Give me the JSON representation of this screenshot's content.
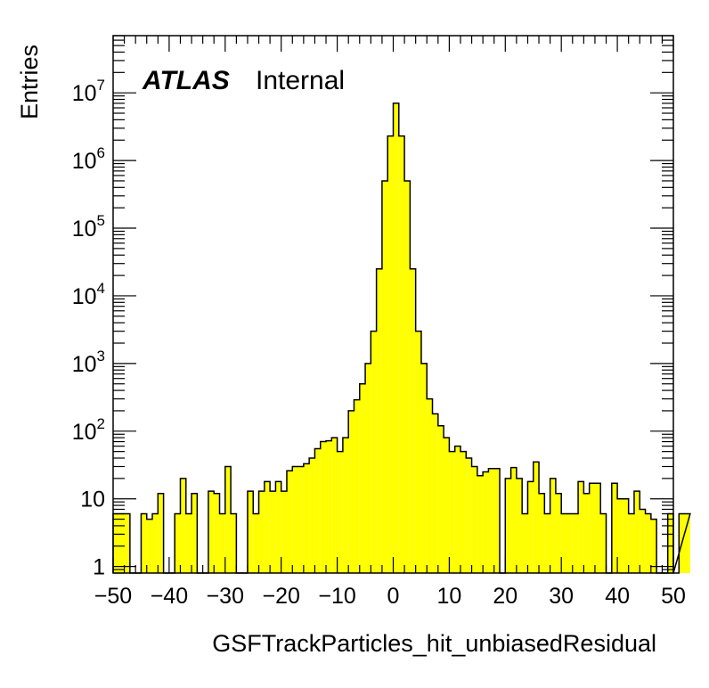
{
  "chart_data": {
    "type": "bar",
    "style": "histogram",
    "xlabel": "GSFTrackParticles_hit_unbiasedResidual",
    "ylabel": "Entries",
    "annotation": {
      "experiment": "ATLAS",
      "status": "Internal"
    },
    "x_range": [
      -50,
      50
    ],
    "y_range": [
      0.8,
      70000000
    ],
    "y_scale": "log",
    "fill_color": "#ffff00",
    "edge_color": "#000000",
    "x_ticks": [
      -50,
      -40,
      -30,
      -20,
      -10,
      0,
      10,
      20,
      30,
      40,
      50
    ],
    "x_tick_labels": [
      "−50",
      "−40",
      "−30",
      "−20",
      "−10",
      "0",
      "10",
      "20",
      "30",
      "40",
      "50"
    ],
    "y_ticks": [
      1,
      10,
      100,
      1000,
      10000,
      100000,
      1000000,
      10000000
    ],
    "y_tick_labels": [
      {
        "base": "1",
        "exp": ""
      },
      {
        "base": "10",
        "exp": ""
      },
      {
        "base": "10",
        "exp": "2"
      },
      {
        "base": "10",
        "exp": "3"
      },
      {
        "base": "10",
        "exp": "4"
      },
      {
        "base": "10",
        "exp": "5"
      },
      {
        "base": "10",
        "exp": "6"
      },
      {
        "base": "10",
        "exp": "7"
      }
    ],
    "bin_width": 1,
    "bin_edges_start": -50,
    "values": [
      6,
      6,
      6,
      0,
      0,
      6,
      5,
      6,
      12,
      0,
      0,
      6,
      20,
      6,
      12,
      0,
      0,
      13,
      12,
      6,
      30,
      6,
      0,
      0,
      13,
      6,
      13,
      18,
      13,
      18,
      13,
      26,
      30,
      30,
      33,
      40,
      55,
      70,
      72,
      80,
      50,
      80,
      200,
      290,
      500,
      1000,
      3000,
      25000,
      500000,
      2300000,
      7000000,
      2300000,
      500000,
      25000,
      3000,
      1000,
      300,
      180,
      120,
      80,
      50,
      60,
      50,
      40,
      30,
      22,
      25,
      28,
      28,
      0,
      20,
      29,
      20,
      6,
      18,
      35,
      12,
      6,
      20,
      12,
      6,
      6,
      6,
      18,
      12,
      17,
      17,
      6,
      0,
      17,
      10,
      10,
      6,
      13,
      7,
      6,
      5,
      0,
      0,
      6,
      0,
      6,
      6
    ]
  }
}
